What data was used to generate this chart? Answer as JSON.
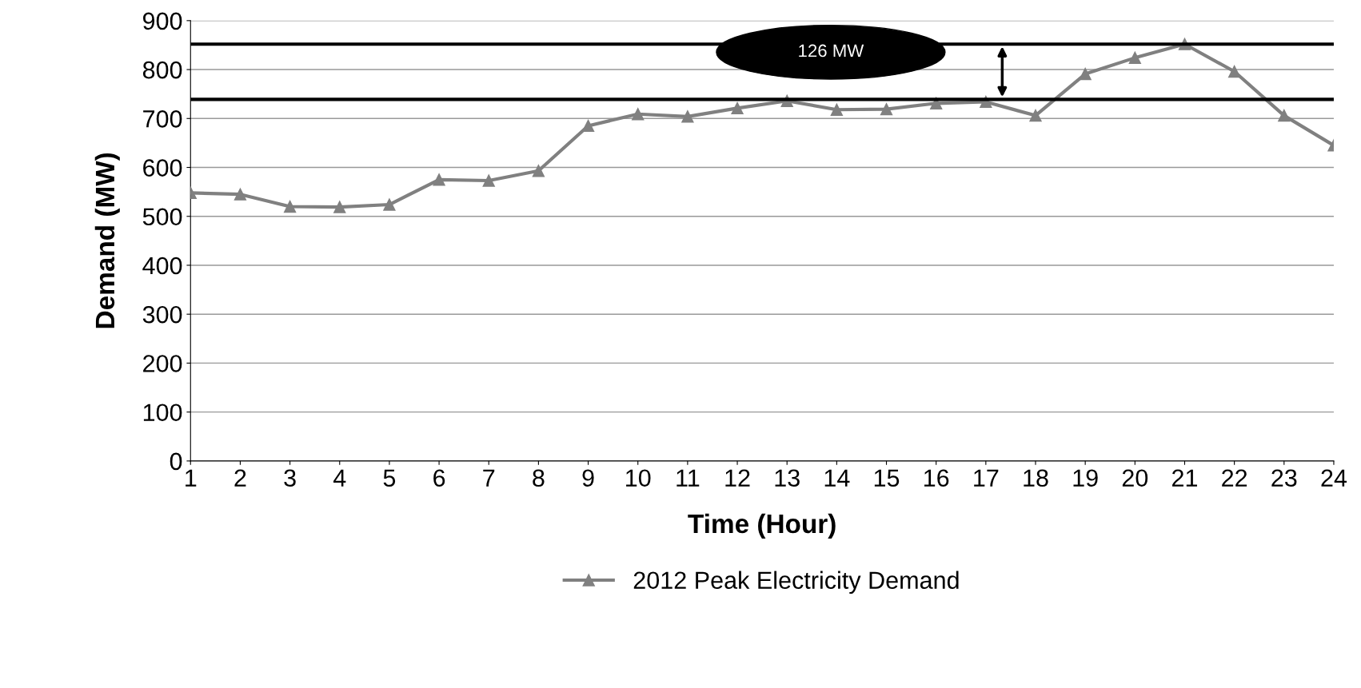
{
  "chart_data": {
    "type": "line",
    "xlabel": "Time (Hour)",
    "ylabel": "Demand (MW)",
    "categories": [
      "1",
      "2",
      "3",
      "4",
      "5",
      "6",
      "7",
      "8",
      "9",
      "10",
      "11",
      "12",
      "13",
      "14",
      "15",
      "16",
      "17",
      "18",
      "19",
      "20",
      "21",
      "22",
      "23",
      "24"
    ],
    "series": [
      {
        "name": "2012 Peak Electricity Demand",
        "color": "#808080",
        "values": [
          548,
          545,
          520,
          519,
          524,
          575,
          573,
          593,
          685,
          709,
          704,
          721,
          736,
          718,
          719,
          731,
          734,
          706,
          791,
          824,
          852,
          796,
          706,
          645
        ]
      }
    ],
    "ylim": [
      0,
      900
    ],
    "yticks": [
      0,
      100,
      200,
      300,
      400,
      500,
      600,
      700,
      800,
      900
    ],
    "ref_lines": [
      {
        "axis": "y",
        "value": 739,
        "color": "#000000"
      },
      {
        "axis": "y",
        "value": 852,
        "color": "#000000"
      }
    ],
    "annotations": [
      "126 MW"
    ],
    "grid": "y",
    "legend": "bottom",
    "marker": "triangle",
    "line_style": "solid"
  }
}
